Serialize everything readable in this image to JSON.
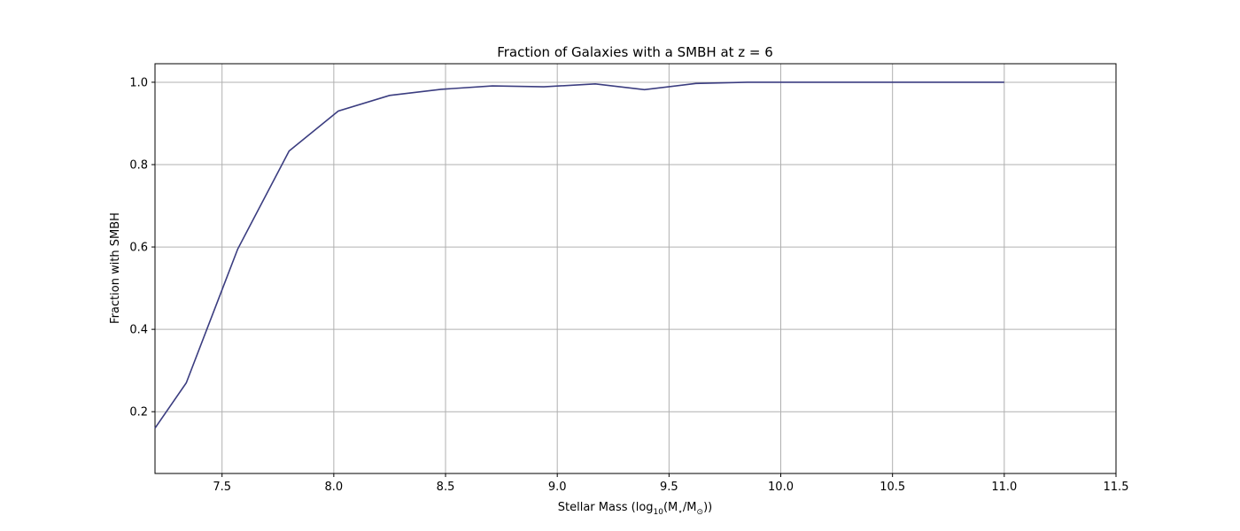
{
  "chart_data": {
    "type": "line",
    "title": "Fraction of Galaxies with a SMBH at z = 6",
    "xlabel": {
      "base": "Stellar Mass (log",
      "subscript": "10",
      "middle": "(M",
      "subscript2": "⋆",
      "slash": "/M",
      "subscript3": "⊙",
      "end": "))"
    },
    "ylabel": "Fraction with SMBH",
    "xlim": [
      7.2,
      11.5
    ],
    "ylim": [
      0.05,
      1.045
    ],
    "xticks": [
      "7.5",
      "8.0",
      "8.5",
      "9.0",
      "9.5",
      "10.0",
      "10.5",
      "11.0",
      "11.5"
    ],
    "xtick_values": [
      7.5,
      8.0,
      8.5,
      9.0,
      9.5,
      10.0,
      10.5,
      11.0,
      11.5
    ],
    "yticks": [
      "0.2",
      "0.4",
      "0.6",
      "0.8",
      "1.0"
    ],
    "ytick_values": [
      0.2,
      0.4,
      0.6,
      0.8,
      1.0
    ],
    "grid": true,
    "line_color": "#3b3d80",
    "series": [
      {
        "x": [
          7.2,
          7.34,
          7.57,
          7.8,
          8.02,
          8.25,
          8.48,
          8.71,
          8.94,
          9.17,
          9.39,
          9.62,
          9.85,
          10.08,
          10.31,
          10.54,
          10.77,
          11.0
        ],
        "y": [
          0.16,
          0.27,
          0.595,
          0.833,
          0.93,
          0.968,
          0.983,
          0.991,
          0.989,
          0.996,
          0.982,
          0.997,
          1.0,
          1.0,
          1.0,
          1.0,
          1.0,
          1.0
        ]
      }
    ]
  }
}
